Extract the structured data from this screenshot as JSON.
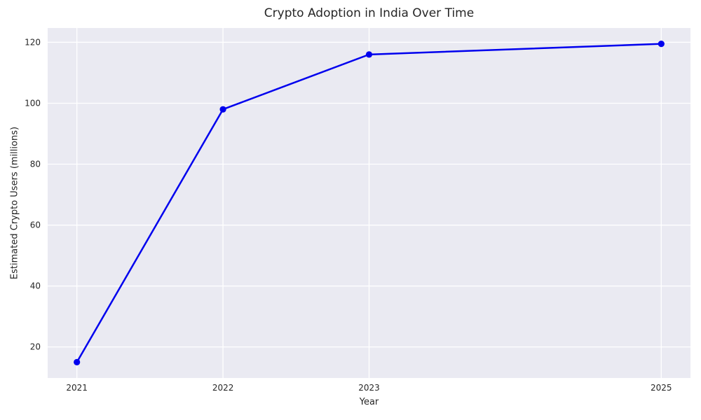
{
  "chart_data": {
    "type": "line",
    "title": "Crypto Adoption in India Over Time",
    "xlabel": "Year",
    "ylabel": "Estimated Crypto Users (millions)",
    "x": [
      2021,
      2022,
      2023,
      2025
    ],
    "y": [
      15,
      98,
      116,
      119.5
    ],
    "series_name": "Estimated Crypto Users",
    "x_ticks": [
      2021,
      2022,
      2023,
      2025
    ],
    "x_tick_labels": [
      "2021",
      "2022",
      "2023",
      "2025"
    ],
    "y_ticks": [
      20,
      40,
      60,
      80,
      100,
      120
    ],
    "y_tick_labels": [
      "20",
      "40",
      "60",
      "80",
      "100",
      "120"
    ],
    "xlim": [
      2020.8,
      2025.2
    ],
    "ylim": [
      9.8,
      124.7
    ],
    "grid": true,
    "legend": false,
    "style": "seaborn-darkgrid",
    "line_color": "#0000ee",
    "marker": "circle",
    "plot_bg_color": "#eaeaf2",
    "grid_color": "#ffffff",
    "text_color": "#262626",
    "figure_bg_color": "#ffffff"
  }
}
